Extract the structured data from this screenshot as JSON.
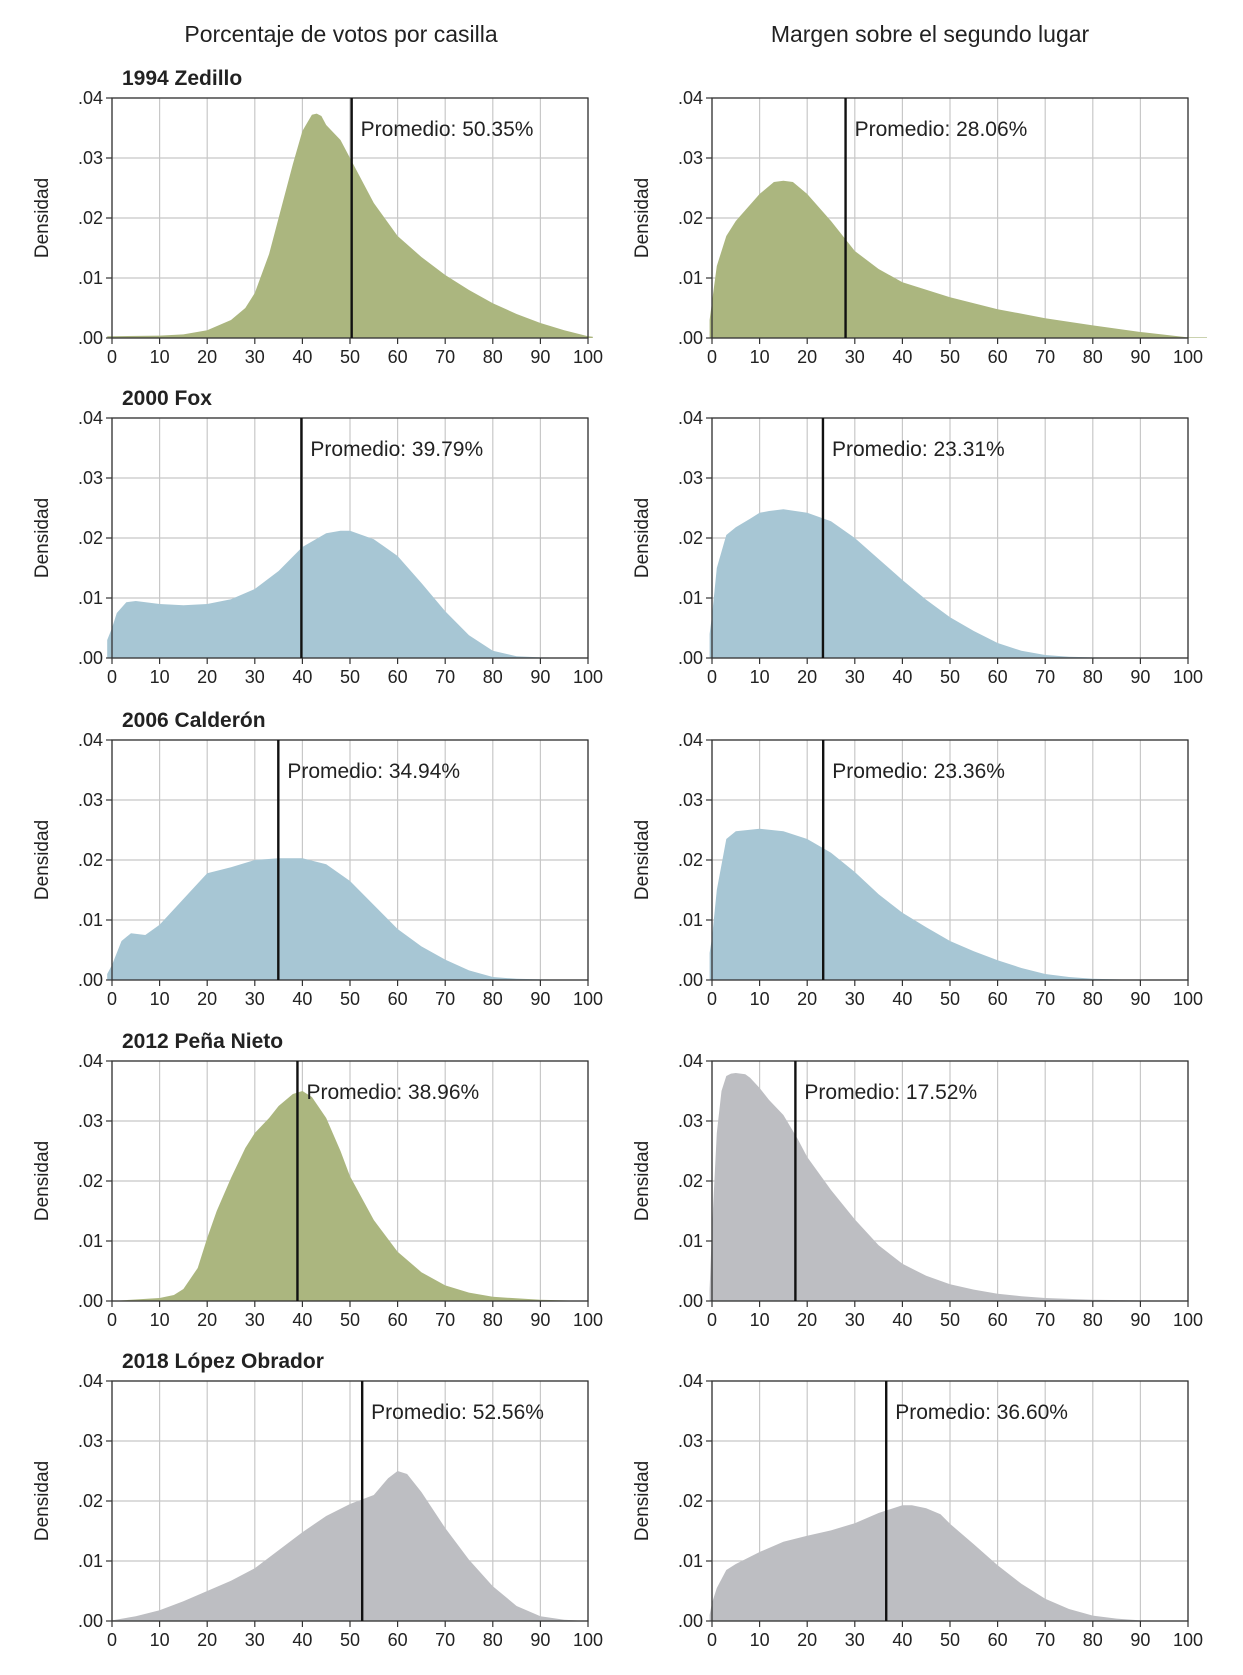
{
  "column_titles": [
    "Porcentaje de votos por casilla",
    "Margen sobre el segundo lugar"
  ],
  "colors": {
    "green": "#abb67f",
    "blue": "#a7c6d4",
    "gray": "#bdbec2"
  },
  "chart_data": [
    {
      "type": "area",
      "row": 0,
      "col": 0,
      "title": "1994 Zedillo",
      "color": "green",
      "ylabel": "Densidad",
      "xlim": [
        0,
        100
      ],
      "ylim": [
        0,
        0.04
      ],
      "xticks": [
        "0",
        "10",
        "20",
        "30",
        "40",
        "50",
        "60",
        "70",
        "80",
        "90",
        "100"
      ],
      "yticks": [
        ".00",
        ".01",
        ".02",
        ".03",
        ".04"
      ],
      "mean": 50.35,
      "mean_label": "Promedio: 50.35%",
      "x": [
        -1,
        0,
        10,
        15,
        20,
        25,
        28,
        30,
        33,
        35,
        38,
        40,
        42,
        43,
        44,
        45,
        48,
        50,
        55,
        60,
        65,
        70,
        75,
        80,
        85,
        90,
        95,
        100,
        101
      ],
      "y": [
        0.0003,
        0.0003,
        0.0004,
        0.0006,
        0.0013,
        0.003,
        0.005,
        0.0075,
        0.014,
        0.02,
        0.029,
        0.0345,
        0.0372,
        0.0374,
        0.037,
        0.0355,
        0.033,
        0.03,
        0.0225,
        0.017,
        0.0135,
        0.0105,
        0.008,
        0.0058,
        0.004,
        0.0025,
        0.0013,
        0.0003,
        0.0002
      ]
    },
    {
      "type": "area",
      "row": 0,
      "col": 1,
      "title": "",
      "color": "green",
      "ylabel": "Densidad",
      "xlim": [
        0,
        100
      ],
      "ylim": [
        0,
        0.04
      ],
      "xticks": [
        "0",
        "10",
        "20",
        "30",
        "40",
        "50",
        "60",
        "70",
        "80",
        "90",
        "100"
      ],
      "yticks": [
        ".00",
        ".01",
        ".02",
        ".03",
        ".04"
      ],
      "mean": 28.06,
      "mean_label": "Promedio: 28.06%",
      "x": [
        -0.5,
        0,
        1,
        3,
        5,
        8,
        10,
        13,
        15,
        17,
        20,
        25,
        30,
        35,
        40,
        50,
        60,
        70,
        80,
        90,
        100,
        104
      ],
      "y": [
        0.003,
        0.006,
        0.012,
        0.017,
        0.0195,
        0.0222,
        0.024,
        0.026,
        0.0262,
        0.026,
        0.024,
        0.0195,
        0.0145,
        0.0115,
        0.0093,
        0.0068,
        0.0048,
        0.0033,
        0.0021,
        0.001,
        0.0001,
        0.0001
      ]
    },
    {
      "type": "area",
      "row": 1,
      "col": 0,
      "title": "2000 Fox",
      "color": "blue",
      "ylabel": "Densidad",
      "xlim": [
        0,
        100
      ],
      "ylim": [
        0,
        0.04
      ],
      "xticks": [
        "0",
        "10",
        "20",
        "30",
        "40",
        "50",
        "60",
        "70",
        "80",
        "90",
        "100"
      ],
      "yticks": [
        ".00",
        ".01",
        ".02",
        ".03",
        ".04"
      ],
      "mean": 39.79,
      "mean_label": "Promedio: 39.79%",
      "x": [
        -1,
        0,
        1,
        3,
        5,
        10,
        15,
        20,
        25,
        30,
        35,
        40,
        45,
        48,
        50,
        55,
        60,
        65,
        70,
        75,
        80,
        85,
        90,
        100
      ],
      "y": [
        0.003,
        0.005,
        0.0075,
        0.0093,
        0.0095,
        0.009,
        0.0088,
        0.009,
        0.0098,
        0.0115,
        0.0145,
        0.0185,
        0.0208,
        0.0212,
        0.0212,
        0.0198,
        0.017,
        0.0125,
        0.0078,
        0.0038,
        0.0012,
        0.0003,
        0.0001,
        0
      ]
    },
    {
      "type": "area",
      "row": 1,
      "col": 1,
      "title": "",
      "color": "blue",
      "ylabel": "Densidad",
      "xlim": [
        0,
        100
      ],
      "ylim": [
        0,
        0.04
      ],
      "xticks": [
        "0",
        "10",
        "20",
        "30",
        "40",
        "50",
        "60",
        "70",
        "80",
        "90",
        "100"
      ],
      "yticks": [
        ".00",
        ".01",
        ".02",
        ".03",
        ".04"
      ],
      "mean": 23.31,
      "mean_label": "Promedio: 23.31%",
      "x": [
        -0.5,
        0,
        1,
        3,
        5,
        8,
        10,
        12,
        15,
        20,
        25,
        30,
        35,
        40,
        45,
        50,
        55,
        60,
        65,
        70,
        75,
        80,
        90,
        100
      ],
      "y": [
        0.004,
        0.007,
        0.015,
        0.0205,
        0.0218,
        0.0232,
        0.0242,
        0.0245,
        0.0248,
        0.0242,
        0.0228,
        0.02,
        0.0165,
        0.013,
        0.0097,
        0.0068,
        0.0045,
        0.0025,
        0.0012,
        0.0005,
        0.0002,
        0.0001,
        0,
        0
      ]
    },
    {
      "type": "area",
      "row": 2,
      "col": 0,
      "title": "2006 Calderón",
      "color": "blue",
      "ylabel": "Densidad",
      "xlim": [
        0,
        100
      ],
      "ylim": [
        0,
        0.04
      ],
      "xticks": [
        "0",
        "10",
        "20",
        "30",
        "40",
        "50",
        "60",
        "70",
        "80",
        "90",
        "100"
      ],
      "yticks": [
        ".00",
        ".01",
        ".02",
        ".03",
        ".04"
      ],
      "mean": 34.94,
      "mean_label": "Promedio: 34.94%",
      "x": [
        -1,
        0,
        2,
        4,
        7,
        10,
        15,
        20,
        25,
        30,
        35,
        40,
        45,
        50,
        55,
        60,
        65,
        70,
        75,
        80,
        85,
        90,
        100
      ],
      "y": [
        0.001,
        0.0025,
        0.0065,
        0.0078,
        0.0075,
        0.0092,
        0.0135,
        0.0178,
        0.0188,
        0.02,
        0.0203,
        0.0203,
        0.0193,
        0.0165,
        0.0125,
        0.0085,
        0.0056,
        0.0034,
        0.0016,
        0.0005,
        0.0002,
        0.0001,
        0
      ]
    },
    {
      "type": "area",
      "row": 2,
      "col": 1,
      "title": "",
      "color": "blue",
      "ylabel": "Densidad",
      "xlim": [
        0,
        100
      ],
      "ylim": [
        0,
        0.04
      ],
      "xticks": [
        "0",
        "10",
        "20",
        "30",
        "40",
        "50",
        "60",
        "70",
        "80",
        "90",
        "100"
      ],
      "yticks": [
        ".00",
        ".01",
        ".02",
        ".03",
        ".04"
      ],
      "mean": 23.36,
      "mean_label": "Promedio: 23.36%",
      "x": [
        -0.5,
        0,
        1,
        3,
        5,
        10,
        15,
        20,
        25,
        30,
        35,
        40,
        45,
        50,
        55,
        60,
        65,
        70,
        75,
        80,
        85,
        90,
        100
      ],
      "y": [
        0.0045,
        0.007,
        0.015,
        0.0235,
        0.0248,
        0.0252,
        0.0248,
        0.0235,
        0.0212,
        0.018,
        0.0143,
        0.0112,
        0.0088,
        0.0065,
        0.0048,
        0.0033,
        0.002,
        0.001,
        0.0005,
        0.0002,
        0.0001,
        0,
        0
      ]
    },
    {
      "type": "area",
      "row": 3,
      "col": 0,
      "title": "2012 Peña Nieto",
      "color": "green",
      "ylabel": "Densidad",
      "xlim": [
        0,
        100
      ],
      "ylim": [
        0,
        0.04
      ],
      "xticks": [
        "0",
        "10",
        "20",
        "30",
        "40",
        "50",
        "60",
        "70",
        "80",
        "90",
        "100"
      ],
      "yticks": [
        ".00",
        ".01",
        ".02",
        ".03",
        ".04"
      ],
      "mean": 38.96,
      "mean_label": "Promedio: 38.96%",
      "x": [
        -1,
        0,
        10,
        13,
        15,
        18,
        20,
        22,
        25,
        28,
        30,
        33,
        35,
        38,
        40,
        42,
        45,
        48,
        50,
        55,
        60,
        65,
        70,
        75,
        80,
        90,
        100
      ],
      "y": [
        0,
        0,
        0.0005,
        0.001,
        0.002,
        0.0055,
        0.0105,
        0.015,
        0.0205,
        0.0255,
        0.028,
        0.0305,
        0.0325,
        0.0345,
        0.035,
        0.034,
        0.0305,
        0.025,
        0.0208,
        0.0135,
        0.0082,
        0.0048,
        0.0026,
        0.0014,
        0.0007,
        0.0002,
        0
      ]
    },
    {
      "type": "area",
      "row": 3,
      "col": 1,
      "title": "",
      "color": "gray",
      "ylabel": "Densidad",
      "xlim": [
        0,
        100
      ],
      "ylim": [
        0,
        0.04
      ],
      "xticks": [
        "0",
        "10",
        "20",
        "30",
        "40",
        "50",
        "60",
        "70",
        "80",
        "90",
        "100"
      ],
      "yticks": [
        ".00",
        ".01",
        ".02",
        ".03",
        ".04"
      ],
      "mean": 17.52,
      "mean_label": "Promedio: 17.52%",
      "x": [
        -0.5,
        0,
        1,
        2,
        3,
        4,
        5,
        7,
        8,
        10,
        12,
        15,
        18,
        20,
        25,
        30,
        35,
        40,
        45,
        50,
        55,
        60,
        65,
        70,
        80,
        90,
        100
      ],
      "y": [
        0.002,
        0.012,
        0.028,
        0.035,
        0.0375,
        0.0379,
        0.038,
        0.0378,
        0.0372,
        0.0355,
        0.0335,
        0.031,
        0.027,
        0.024,
        0.0185,
        0.0136,
        0.0093,
        0.0062,
        0.0042,
        0.0028,
        0.0019,
        0.0012,
        0.0008,
        0.0005,
        0.0002,
        0.0001,
        0
      ]
    },
    {
      "type": "area",
      "row": 4,
      "col": 0,
      "title": "2018 López Obrador",
      "color": "gray",
      "ylabel": "Densidad",
      "xlim": [
        0,
        100
      ],
      "ylim": [
        0,
        0.04
      ],
      "xticks": [
        "0",
        "10",
        "20",
        "30",
        "40",
        "50",
        "60",
        "70",
        "80",
        "90",
        "100"
      ],
      "yticks": [
        ".00",
        ".01",
        ".02",
        ".03",
        ".04"
      ],
      "mean": 52.56,
      "mean_label": "Promedio: 52.56%",
      "x": [
        -1,
        0,
        5,
        10,
        15,
        20,
        25,
        30,
        35,
        40,
        45,
        50,
        55,
        58,
        60,
        62,
        65,
        70,
        75,
        80,
        85,
        90,
        95,
        100
      ],
      "y": [
        0,
        0.0001,
        0.0008,
        0.0018,
        0.0033,
        0.005,
        0.0067,
        0.0088,
        0.0118,
        0.0148,
        0.0175,
        0.0195,
        0.021,
        0.0238,
        0.025,
        0.0245,
        0.0215,
        0.0155,
        0.0102,
        0.0058,
        0.0025,
        0.0008,
        0.0002,
        0
      ]
    },
    {
      "type": "area",
      "row": 4,
      "col": 1,
      "title": "",
      "color": "gray",
      "ylabel": "Densidad",
      "xlim": [
        0,
        100
      ],
      "ylim": [
        0,
        0.04
      ],
      "xticks": [
        "0",
        "10",
        "20",
        "30",
        "40",
        "50",
        "60",
        "70",
        "80",
        "90",
        "100"
      ],
      "yticks": [
        ".00",
        ".01",
        ".02",
        ".03",
        ".04"
      ],
      "mean": 36.6,
      "mean_label": "Promedio: 36.60%",
      "x": [
        -0.5,
        0,
        1,
        3,
        5,
        10,
        15,
        20,
        25,
        30,
        35,
        40,
        42,
        45,
        48,
        50,
        55,
        60,
        65,
        70,
        75,
        80,
        85,
        90,
        100
      ],
      "y": [
        0.001,
        0.003,
        0.0055,
        0.0085,
        0.0095,
        0.0115,
        0.0132,
        0.0142,
        0.0151,
        0.0163,
        0.018,
        0.0193,
        0.0193,
        0.0188,
        0.0178,
        0.0162,
        0.0128,
        0.0093,
        0.0062,
        0.0037,
        0.002,
        0.0009,
        0.0004,
        0.0001,
        0
      ]
    }
  ]
}
